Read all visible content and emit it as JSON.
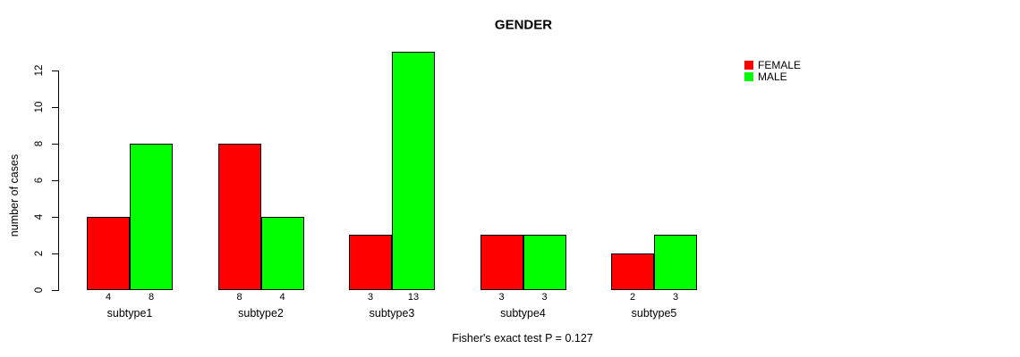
{
  "title": "GENDER",
  "caption": "Fisher's exact test P = 0.127",
  "colors": {
    "female": "#ff0000",
    "male": "#00ff00",
    "axis": "#000000",
    "background": "#ffffff"
  },
  "legend": {
    "items": [
      {
        "label": "FEMALE",
        "color": "#ff0000"
      },
      {
        "label": "MALE",
        "color": "#00ff00"
      }
    ]
  },
  "chart_data": {
    "type": "bar",
    "title": "GENDER",
    "categories": [
      "subtype1",
      "subtype2",
      "subtype3",
      "subtype4",
      "subtype5"
    ],
    "series": [
      {
        "name": "FEMALE",
        "color": "#ff0000",
        "values": [
          4,
          8,
          3,
          3,
          2
        ]
      },
      {
        "name": "MALE",
        "color": "#00ff00",
        "values": [
          8,
          4,
          13,
          3,
          3
        ]
      }
    ],
    "xlabel": "",
    "ylabel": "number of cases",
    "ylim": [
      0,
      13
    ],
    "yticks": [
      0,
      2,
      4,
      6,
      8,
      10,
      12
    ],
    "bar_value_labels": true,
    "annotation": "Fisher's exact test P = 0.127",
    "legend_position": "top-right",
    "grid": false
  }
}
